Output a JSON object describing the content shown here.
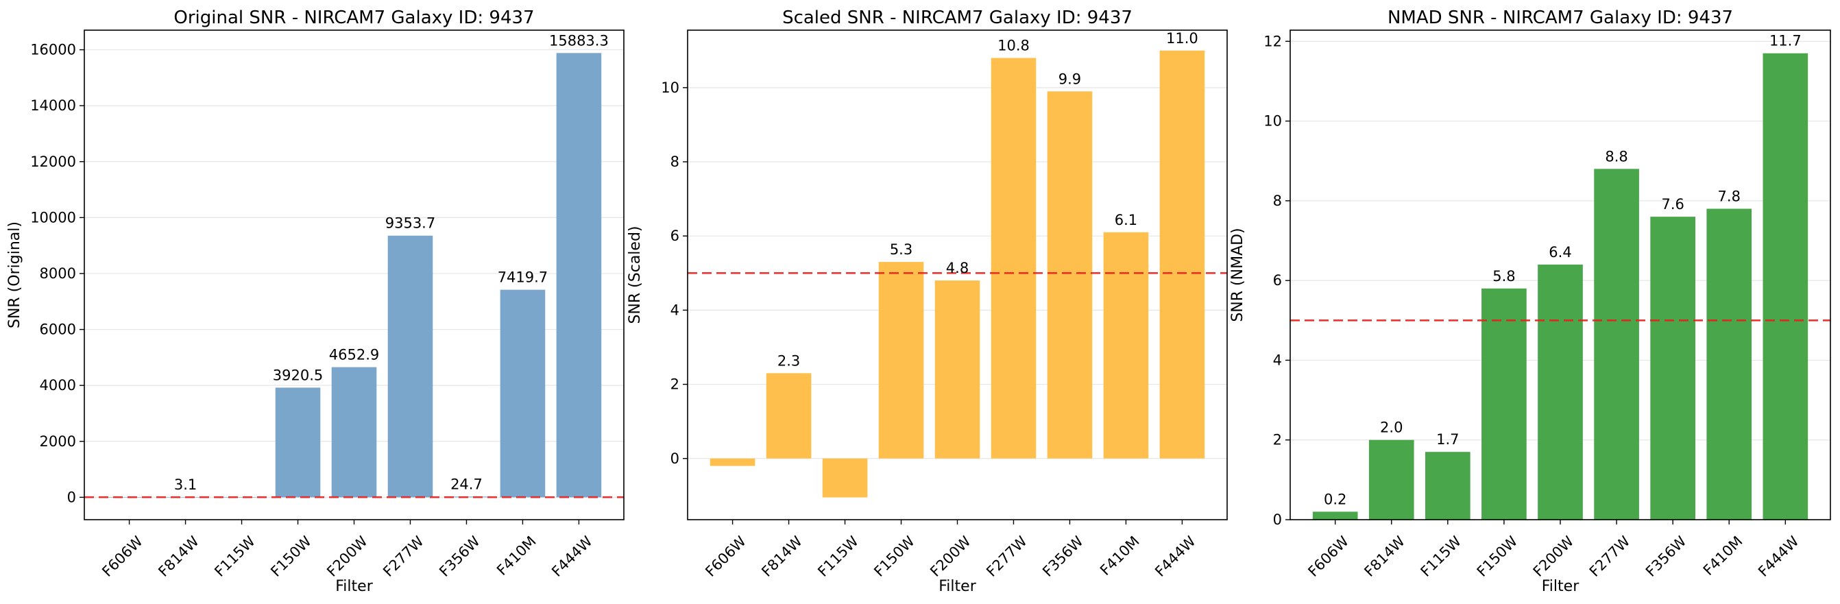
{
  "chart_data": [
    {
      "type": "bar",
      "title": "Original SNR - NIRCAM7 Galaxy ID: 9437",
      "xlabel": "Filter",
      "ylabel": "SNR (Original)",
      "categories": [
        "F606W",
        "F814W",
        "F115W",
        "F150W",
        "F200W",
        "F277W",
        "F356W",
        "F410M",
        "F444W"
      ],
      "values": [
        0.8,
        3.1,
        2.0,
        3920.5,
        4652.9,
        9353.7,
        24.7,
        7419.7,
        15883.3
      ],
      "value_labels": [
        "",
        "3.1",
        "",
        "3920.5",
        "4652.9",
        "9353.7",
        "24.7",
        "7419.7",
        "15883.3"
      ],
      "ylim": [
        -800,
        16700
      ],
      "yticks": [
        0,
        2000,
        4000,
        6000,
        8000,
        10000,
        12000,
        14000,
        16000
      ],
      "ytick_labels": [
        "0",
        "2000",
        "4000",
        "6000",
        "8000",
        "10000",
        "12000",
        "14000",
        "16000"
      ],
      "threshold": 5,
      "bar_color": "#7ba6cc",
      "grid": true
    },
    {
      "type": "bar",
      "title": "Scaled SNR - NIRCAM7 Galaxy ID: 9437",
      "xlabel": "Filter",
      "ylabel": "SNR (Scaled)",
      "categories": [
        "F606W",
        "F814W",
        "F115W",
        "F150W",
        "F200W",
        "F277W",
        "F356W",
        "F410M",
        "F444W"
      ],
      "values": [
        -0.2,
        2.3,
        -1.05,
        5.3,
        4.8,
        10.8,
        9.9,
        6.1,
        11.0
      ],
      "value_labels": [
        "",
        "2.3",
        "",
        "5.3",
        "4.8",
        "10.8",
        "9.9",
        "6.1",
        "11.0"
      ],
      "ylim": [
        -1.65,
        11.55
      ],
      "yticks": [
        0,
        2,
        4,
        6,
        8,
        10
      ],
      "ytick_labels": [
        "0",
        "2",
        "4",
        "6",
        "8",
        "10"
      ],
      "threshold": 5,
      "bar_color": "#ffbf4d",
      "grid": true
    },
    {
      "type": "bar",
      "title": "NMAD SNR - NIRCAM7 Galaxy ID: 9437",
      "xlabel": "Filter",
      "ylabel": "SNR (NMAD)",
      "categories": [
        "F606W",
        "F814W",
        "F115W",
        "F150W",
        "F200W",
        "F277W",
        "F356W",
        "F410M",
        "F444W"
      ],
      "values": [
        0.2,
        2.0,
        1.7,
        5.8,
        6.4,
        8.8,
        7.6,
        7.8,
        11.7
      ],
      "value_labels": [
        "0.2",
        "2.0",
        "1.7",
        "5.8",
        "6.4",
        "8.8",
        "7.6",
        "7.8",
        "11.7"
      ],
      "ylim": [
        0,
        12.28
      ],
      "yticks": [
        0,
        2,
        4,
        6,
        8,
        10,
        12
      ],
      "ytick_labels": [
        "0",
        "2",
        "4",
        "6",
        "8",
        "10",
        "12"
      ],
      "threshold": 5,
      "bar_color": "#4aa64a",
      "grid": true
    }
  ]
}
